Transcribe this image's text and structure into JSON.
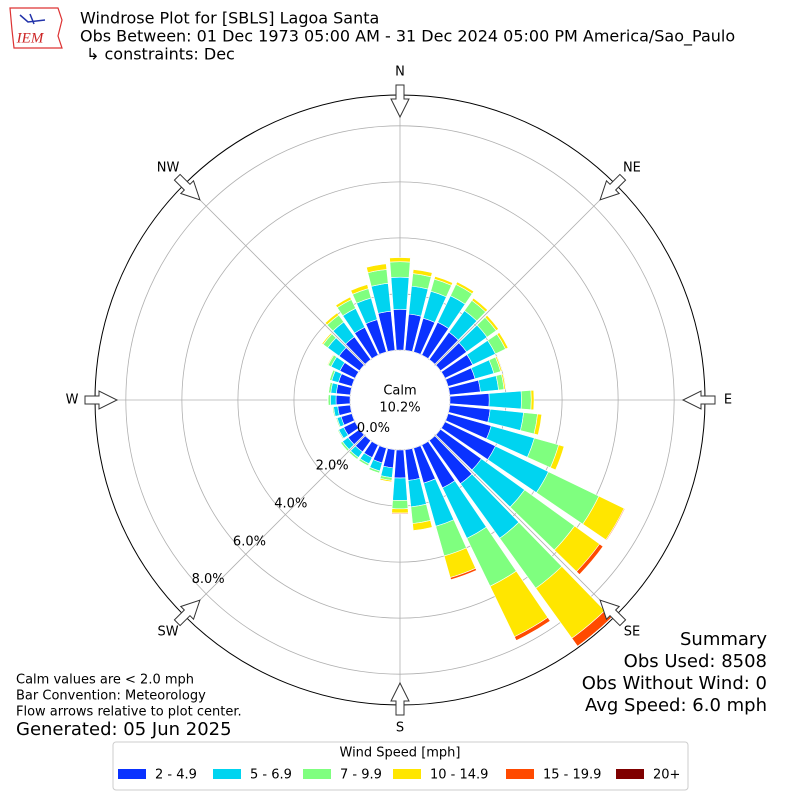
{
  "chart_data": {
    "type": "windrose",
    "title": "Windrose Plot for [SBLS] Lagoa Santa",
    "subtitle": "Obs Between: 01 Dec 1973 05:00 AM - 31 Dec 2024 05:00 PM America/Sao_Paulo",
    "constraints": "↳ constraints: Dec",
    "logo_text": "IEM",
    "x": [
      0,
      10,
      20,
      30,
      40,
      50,
      60,
      70,
      80,
      90,
      100,
      110,
      120,
      130,
      140,
      150,
      160,
      170,
      180,
      190,
      200,
      210,
      220,
      230,
      240,
      250,
      260,
      270,
      280,
      290,
      300,
      310,
      320,
      330,
      340,
      350
    ],
    "xlim": [
      0,
      360
    ],
    "xticks": [
      {
        "value": 0,
        "label": "N"
      },
      {
        "value": 45,
        "label": "NE"
      },
      {
        "value": 90,
        "label": "E"
      },
      {
        "value": 135,
        "label": "SE"
      },
      {
        "value": 180,
        "label": "S"
      },
      {
        "value": 225,
        "label": "SW"
      },
      {
        "value": 270,
        "label": "W"
      },
      {
        "value": 315,
        "label": "NW"
      }
    ],
    "ylim": [
      0,
      9.1
    ],
    "yticks": [
      {
        "value": 0,
        "label": "0.0%"
      },
      {
        "value": 2,
        "label": "2.0%"
      },
      {
        "value": 4,
        "label": "4.0%"
      },
      {
        "value": 6,
        "label": "6.0%"
      },
      {
        "value": 8,
        "label": "8.0%"
      }
    ],
    "grid": true,
    "calm": {
      "label": "Calm",
      "value": 10.2,
      "value_label": "10.2%"
    },
    "legend_title": "Wind Speed [mph]",
    "series": [
      {
        "name": "2 - 4.9",
        "color": "#0a32ff",
        "values": [
          1.45,
          1.3,
          1.25,
          1.3,
          1.2,
          1.15,
          1.1,
          1.0,
          1.1,
          1.4,
          1.45,
          1.6,
          2.0,
          1.8,
          1.9,
          1.7,
          1.3,
          1.1,
          1.0,
          0.65,
          0.55,
          0.5,
          0.5,
          0.5,
          0.45,
          0.4,
          0.45,
          0.5,
          0.5,
          0.5,
          0.6,
          0.9,
          1.0,
          1.1,
          1.2,
          1.4
        ]
      },
      {
        "name": "5 - 6.9",
        "color": "#00d4f0",
        "values": [
          1.15,
          1.0,
          1.0,
          1.05,
          0.95,
          0.9,
          0.9,
          0.7,
          0.65,
          1.15,
          1.2,
          1.6,
          2.1,
          1.9,
          2.4,
          2.0,
          1.6,
          0.95,
          0.8,
          0.35,
          0.3,
          0.25,
          0.25,
          0.25,
          0.2,
          0.15,
          0.15,
          0.2,
          0.2,
          0.25,
          0.35,
          0.5,
          0.65,
          0.75,
          0.8,
          1.0
        ]
      },
      {
        "name": "7 - 9.9",
        "color": "#7fff7f",
        "values": [
          0.55,
          0.45,
          0.45,
          0.45,
          0.45,
          0.4,
          0.4,
          0.25,
          0.2,
          0.35,
          0.5,
          0.9,
          2.0,
          2.2,
          2.2,
          1.9,
          1.1,
          0.6,
          0.3,
          0.1,
          0.08,
          0.08,
          0.08,
          0.08,
          0.04,
          0.04,
          0.04,
          0.08,
          0.08,
          0.08,
          0.12,
          0.2,
          0.3,
          0.35,
          0.35,
          0.5
        ]
      },
      {
        "name": "10 - 14.9",
        "color": "#ffe600",
        "values": [
          0.15,
          0.15,
          0.1,
          0.1,
          0.1,
          0.1,
          0.1,
          0.05,
          0.05,
          0.1,
          0.15,
          0.2,
          1.0,
          1.1,
          2.2,
          2.0,
          0.8,
          0.25,
          0.15,
          0.05,
          0.02,
          0.02,
          0.02,
          0.02,
          0.01,
          0.01,
          0.01,
          0.02,
          0.02,
          0.02,
          0.03,
          0.05,
          0.1,
          0.1,
          0.15,
          0.2
        ]
      },
      {
        "name": "15 - 19.9",
        "color": "#ff4a00",
        "values": [
          0,
          0,
          0,
          0,
          0,
          0,
          0,
          0,
          0,
          0,
          0,
          0,
          0.03,
          0.15,
          0.35,
          0.15,
          0.08,
          0,
          0.03,
          0,
          0,
          0,
          0,
          0,
          0,
          0,
          0,
          0,
          0,
          0,
          0,
          0,
          0,
          0,
          0,
          0
        ]
      },
      {
        "name": "20+",
        "color": "#7f0000",
        "values": [
          0,
          0,
          0,
          0,
          0,
          0,
          0,
          0,
          0,
          0,
          0,
          0,
          0,
          0,
          0.02,
          0,
          0,
          0,
          0,
          0,
          0,
          0,
          0,
          0,
          0,
          0,
          0,
          0,
          0,
          0,
          0,
          0,
          0,
          0,
          0,
          0
        ]
      }
    ],
    "notes": [
      "Calm values are < 2.0 mph",
      "Bar Convention: Meteorology",
      "Flow arrows relative to plot center."
    ],
    "generated": "Generated: 05 Jun 2025",
    "summary": {
      "title": "Summary",
      "lines": [
        "Obs Used: 8508",
        "Obs Without Wind: 0",
        "Avg Speed: 6.0 mph"
      ]
    }
  }
}
